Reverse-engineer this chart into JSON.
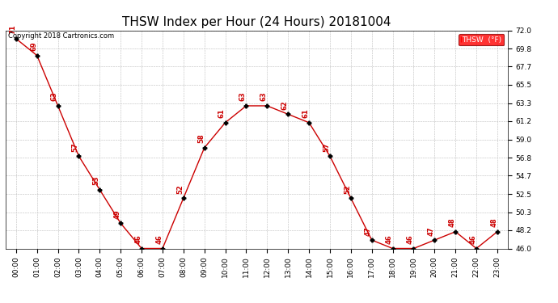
{
  "title": "THSW Index per Hour (24 Hours) 20181004",
  "copyright": "Copyright 2018 Cartronics.com",
  "legend_label": "THSW  (°F)",
  "hours": [
    "00:00",
    "01:00",
    "02:00",
    "03:00",
    "04:00",
    "05:00",
    "06:00",
    "07:00",
    "08:00",
    "09:00",
    "10:00",
    "11:00",
    "12:00",
    "13:00",
    "14:00",
    "15:00",
    "16:00",
    "17:00",
    "18:00",
    "19:00",
    "20:00",
    "21:00",
    "22:00",
    "23:00"
  ],
  "values": [
    71,
    69,
    63,
    57,
    53,
    49,
    46,
    46,
    52,
    58,
    61,
    63,
    63,
    62,
    61,
    57,
    52,
    47,
    46,
    46,
    47,
    48,
    46,
    48
  ],
  "ylim_min": 46.0,
  "ylim_max": 72.0,
  "yticks": [
    46.0,
    48.2,
    50.3,
    52.5,
    54.7,
    56.8,
    59.0,
    61.2,
    63.3,
    65.5,
    67.7,
    69.8,
    72.0
  ],
  "line_color": "#cc0000",
  "marker_color": "#000000",
  "label_color": "#cc0000",
  "bg_color": "#ffffff",
  "grid_color": "#bbbbbb",
  "title_fontsize": 11,
  "label_fontsize": 6,
  "tick_fontsize": 6.5,
  "copyright_fontsize": 6
}
